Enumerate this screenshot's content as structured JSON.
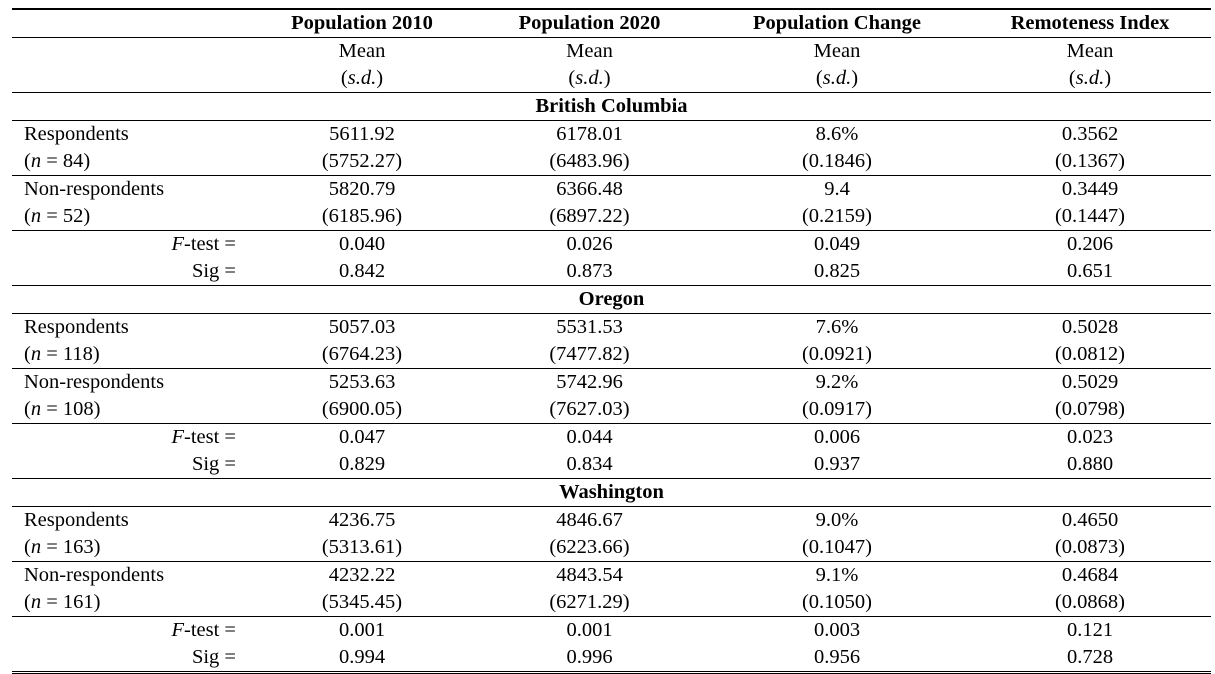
{
  "columns": [
    "",
    "Population 2010",
    "Population 2020",
    "Population Change",
    "Remoteness Index"
  ],
  "subheader": {
    "stat": "Mean",
    "sd": "s.d."
  },
  "labels": {
    "ftest_italic": "F",
    "ftest_rest": "-test =",
    "sig": "Sig ="
  },
  "sections": [
    {
      "title": "British Columbia",
      "groups": [
        {
          "label": "Respondents",
          "n_italic": "n",
          "n_rest": " = 84)",
          "means": [
            "5611.92",
            "6178.01",
            "8.6%",
            "0.3562"
          ],
          "sds": [
            "(5752.27)",
            "(6483.96)",
            "(0.1846)",
            "(0.1367)"
          ]
        },
        {
          "label": "Non-respondents",
          "n_italic": "n",
          "n_rest": " = 52)",
          "means": [
            "5820.79",
            "6366.48",
            "9.4",
            "0.3449"
          ],
          "sds": [
            "(6185.96)",
            "(6897.22)",
            "(0.2159)",
            "(0.1447)"
          ]
        }
      ],
      "ftest": [
        "0.040",
        "0.026",
        "0.049",
        "0.206"
      ],
      "sig": [
        "0.842",
        "0.873",
        "0.825",
        "0.651"
      ]
    },
    {
      "title": "Oregon",
      "groups": [
        {
          "label": "Respondents",
          "n_italic": "n",
          "n_rest": " = 118)",
          "means": [
            "5057.03",
            "5531.53",
            "7.6%",
            "0.5028"
          ],
          "sds": [
            "(6764.23)",
            "(7477.82)",
            "(0.0921)",
            "(0.0812)"
          ]
        },
        {
          "label": "Non-respondents",
          "n_italic": "n",
          "n_rest": " = 108)",
          "means": [
            "5253.63",
            "5742.96",
            "9.2%",
            "0.5029"
          ],
          "sds": [
            "(6900.05)",
            "(7627.03)",
            "(0.0917)",
            "(0.0798)"
          ]
        }
      ],
      "ftest": [
        "0.047",
        "0.044",
        "0.006",
        "0.023"
      ],
      "sig": [
        "0.829",
        "0.834",
        "0.937",
        "0.880"
      ]
    },
    {
      "title": "Washington",
      "groups": [
        {
          "label": "Respondents",
          "n_italic": "n",
          "n_rest": " = 163)",
          "means": [
            "4236.75",
            "4846.67",
            "9.0%",
            "0.4650"
          ],
          "sds": [
            "(5313.61)",
            "(6223.66)",
            "(0.1047)",
            "(0.0873)"
          ]
        },
        {
          "label": "Non-respondents",
          "n_italic": "n",
          "n_rest": " = 161)",
          "means": [
            "4232.22",
            "4843.54",
            "9.1%",
            "0.4684"
          ],
          "sds": [
            "(5345.45)",
            "(6271.29)",
            "(0.1050)",
            "(0.0868)"
          ]
        }
      ],
      "ftest": [
        "0.001",
        "0.001",
        "0.003",
        "0.121"
      ],
      "sig": [
        "0.994",
        "0.996",
        "0.956",
        "0.728"
      ]
    }
  ]
}
